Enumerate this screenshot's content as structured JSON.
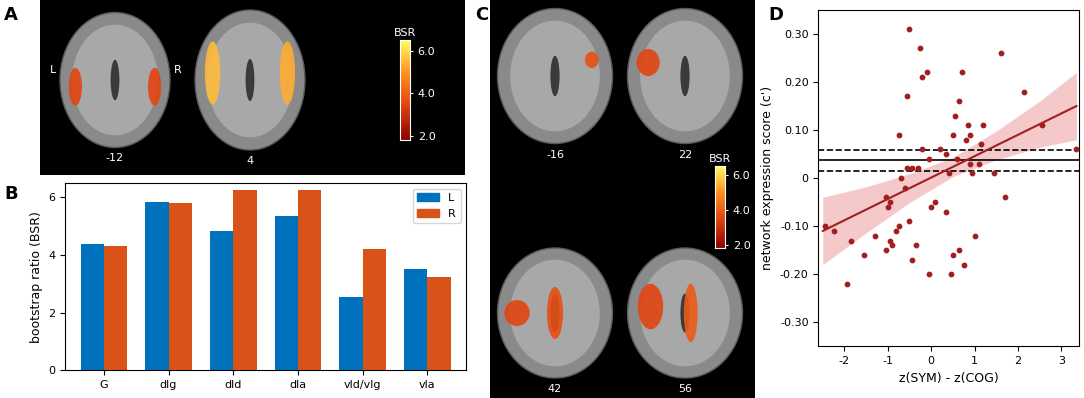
{
  "chart_data": [
    {
      "type": "image",
      "panel_label": "A",
      "slices": [
        -12,
        4
      ],
      "hemisphere_labels": [
        "L",
        "R"
      ],
      "colorbar": {
        "title": "BSR",
        "range": [
          1.8,
          6.5
        ],
        "ticks": [
          {
            "value": 2,
            "label": "2.0"
          },
          {
            "value": 4,
            "label": "4.0"
          },
          {
            "value": 6,
            "label": "6.0"
          }
        ]
      }
    },
    {
      "type": "bar",
      "panel_label": "B",
      "categories": [
        "G",
        "dlg",
        "dld",
        "dla",
        "vld/vlg",
        "vla"
      ],
      "series": [
        {
          "name": "L",
          "color": "#0072bd",
          "values": [
            4.4,
            5.85,
            4.85,
            5.35,
            2.55,
            3.5
          ]
        },
        {
          "name": "R",
          "color": "#d95319",
          "values": [
            4.3,
            5.8,
            6.25,
            6.25,
            4.2,
            3.25
          ]
        }
      ],
      "y_label": "bootstrap ratio (BSR)",
      "ylim": [
        0,
        6.5
      ],
      "yticks": [
        0,
        2,
        4,
        6
      ],
      "legend": "upper right"
    },
    {
      "type": "image",
      "panel_label": "C",
      "slices": [
        -16,
        22,
        42,
        56
      ],
      "colorbar": {
        "title": "BSR",
        "range": [
          1.8,
          6.5
        ],
        "ticks": [
          {
            "value": 2,
            "label": "2.0"
          },
          {
            "value": 4,
            "label": "4.0"
          },
          {
            "value": 6,
            "label": "6.0"
          }
        ]
      }
    },
    {
      "type": "scatter",
      "panel_label": "D",
      "x_label": "z(SYM) - z(COG)",
      "y_label": "network expression score (c')",
      "xlim": [
        -2.6,
        3.4
      ],
      "xticks": [
        -2,
        -1,
        0,
        1,
        2,
        3
      ],
      "ylim": [
        -0.35,
        0.35
      ],
      "yticks": [
        {
          "value": -0.3,
          "label": "-0.30"
        },
        {
          "value": -0.2,
          "label": "-0.20"
        },
        {
          "value": -0.1,
          "label": "-0.10"
        },
        0,
        {
          "value": 0.1,
          "label": "0.10"
        },
        {
          "value": 0.2,
          "label": "0.20"
        },
        {
          "value": 0.3,
          "label": "0.30"
        }
      ],
      "series": [
        {
          "type": "area",
          "color": "#f2b3b3",
          "x": [
            -2.5,
            -1.5,
            -0.5,
            0.5,
            1.5,
            2.5,
            3.35
          ],
          "lower": [
            -0.18,
            -0.114,
            -0.051,
            0.003,
            0.038,
            0.064,
            0.08
          ],
          "upper": [
            -0.04,
            -0.018,
            0.009,
            0.043,
            0.098,
            0.16,
            0.22
          ]
        },
        {
          "type": "hline",
          "color": "#000000",
          "line_style": "solid",
          "values": [
            0.037
          ]
        },
        {
          "type": "hline",
          "color": "#000000",
          "line_style": "dashed",
          "values": [
            0.015
          ]
        },
        {
          "type": "hline",
          "color": "#000000",
          "line_style": "dashed",
          "values": [
            0.058
          ]
        },
        {
          "type": "line",
          "color": "#a31f1f",
          "line_style": "solid",
          "x": [
            -2.5,
            3.35
          ],
          "values": [
            -0.11,
            0.15
          ]
        },
        {
          "type": "scatter",
          "color": "#a31f1f",
          "marker": "circle",
          "x": [
            -2.45,
            -2.25,
            -1.95,
            -1.85,
            -1.55,
            -1.3,
            -1.05,
            -1.05,
            -1.0,
            -0.95,
            -0.95,
            -0.9,
            -0.8,
            -0.75,
            -0.75,
            -0.7,
            -0.6,
            -0.55,
            -0.55,
            -0.5,
            -0.5,
            -0.45,
            -0.45,
            -0.35,
            -0.3,
            -0.25,
            -0.2,
            -0.2,
            -0.1,
            -0.05,
            -0.05,
            0.0,
            0.1,
            0.2,
            0.35,
            0.35,
            0.4,
            0.45,
            0.5,
            0.5,
            0.55,
            0.6,
            0.65,
            0.65,
            0.7,
            0.75,
            0.8,
            0.85,
            0.9,
            0.9,
            0.95,
            1.0,
            1.1,
            1.15,
            1.2,
            1.45,
            1.6,
            1.7,
            2.15,
            2.55,
            3.35
          ],
          "values": [
            -0.1,
            -0.11,
            -0.22,
            -0.13,
            -0.16,
            -0.12,
            -0.15,
            -0.04,
            -0.06,
            -0.05,
            -0.13,
            -0.14,
            -0.11,
            -0.1,
            0.09,
            0.0,
            -0.02,
            0.02,
            0.17,
            -0.09,
            0.31,
            0.02,
            -0.17,
            -0.14,
            0.02,
            0.27,
            0.21,
            0.06,
            0.22,
            -0.2,
            0.04,
            -0.06,
            -0.05,
            0.06,
            0.05,
            -0.07,
            0.01,
            -0.2,
            -0.16,
            0.09,
            0.13,
            0.04,
            0.16,
            -0.15,
            0.22,
            -0.18,
            0.08,
            0.11,
            0.09,
            0.03,
            0.01,
            -0.12,
            0.03,
            0.07,
            0.11,
            0.01,
            0.26,
            -0.04,
            0.18,
            0.11,
            0.06
          ]
        }
      ]
    }
  ]
}
